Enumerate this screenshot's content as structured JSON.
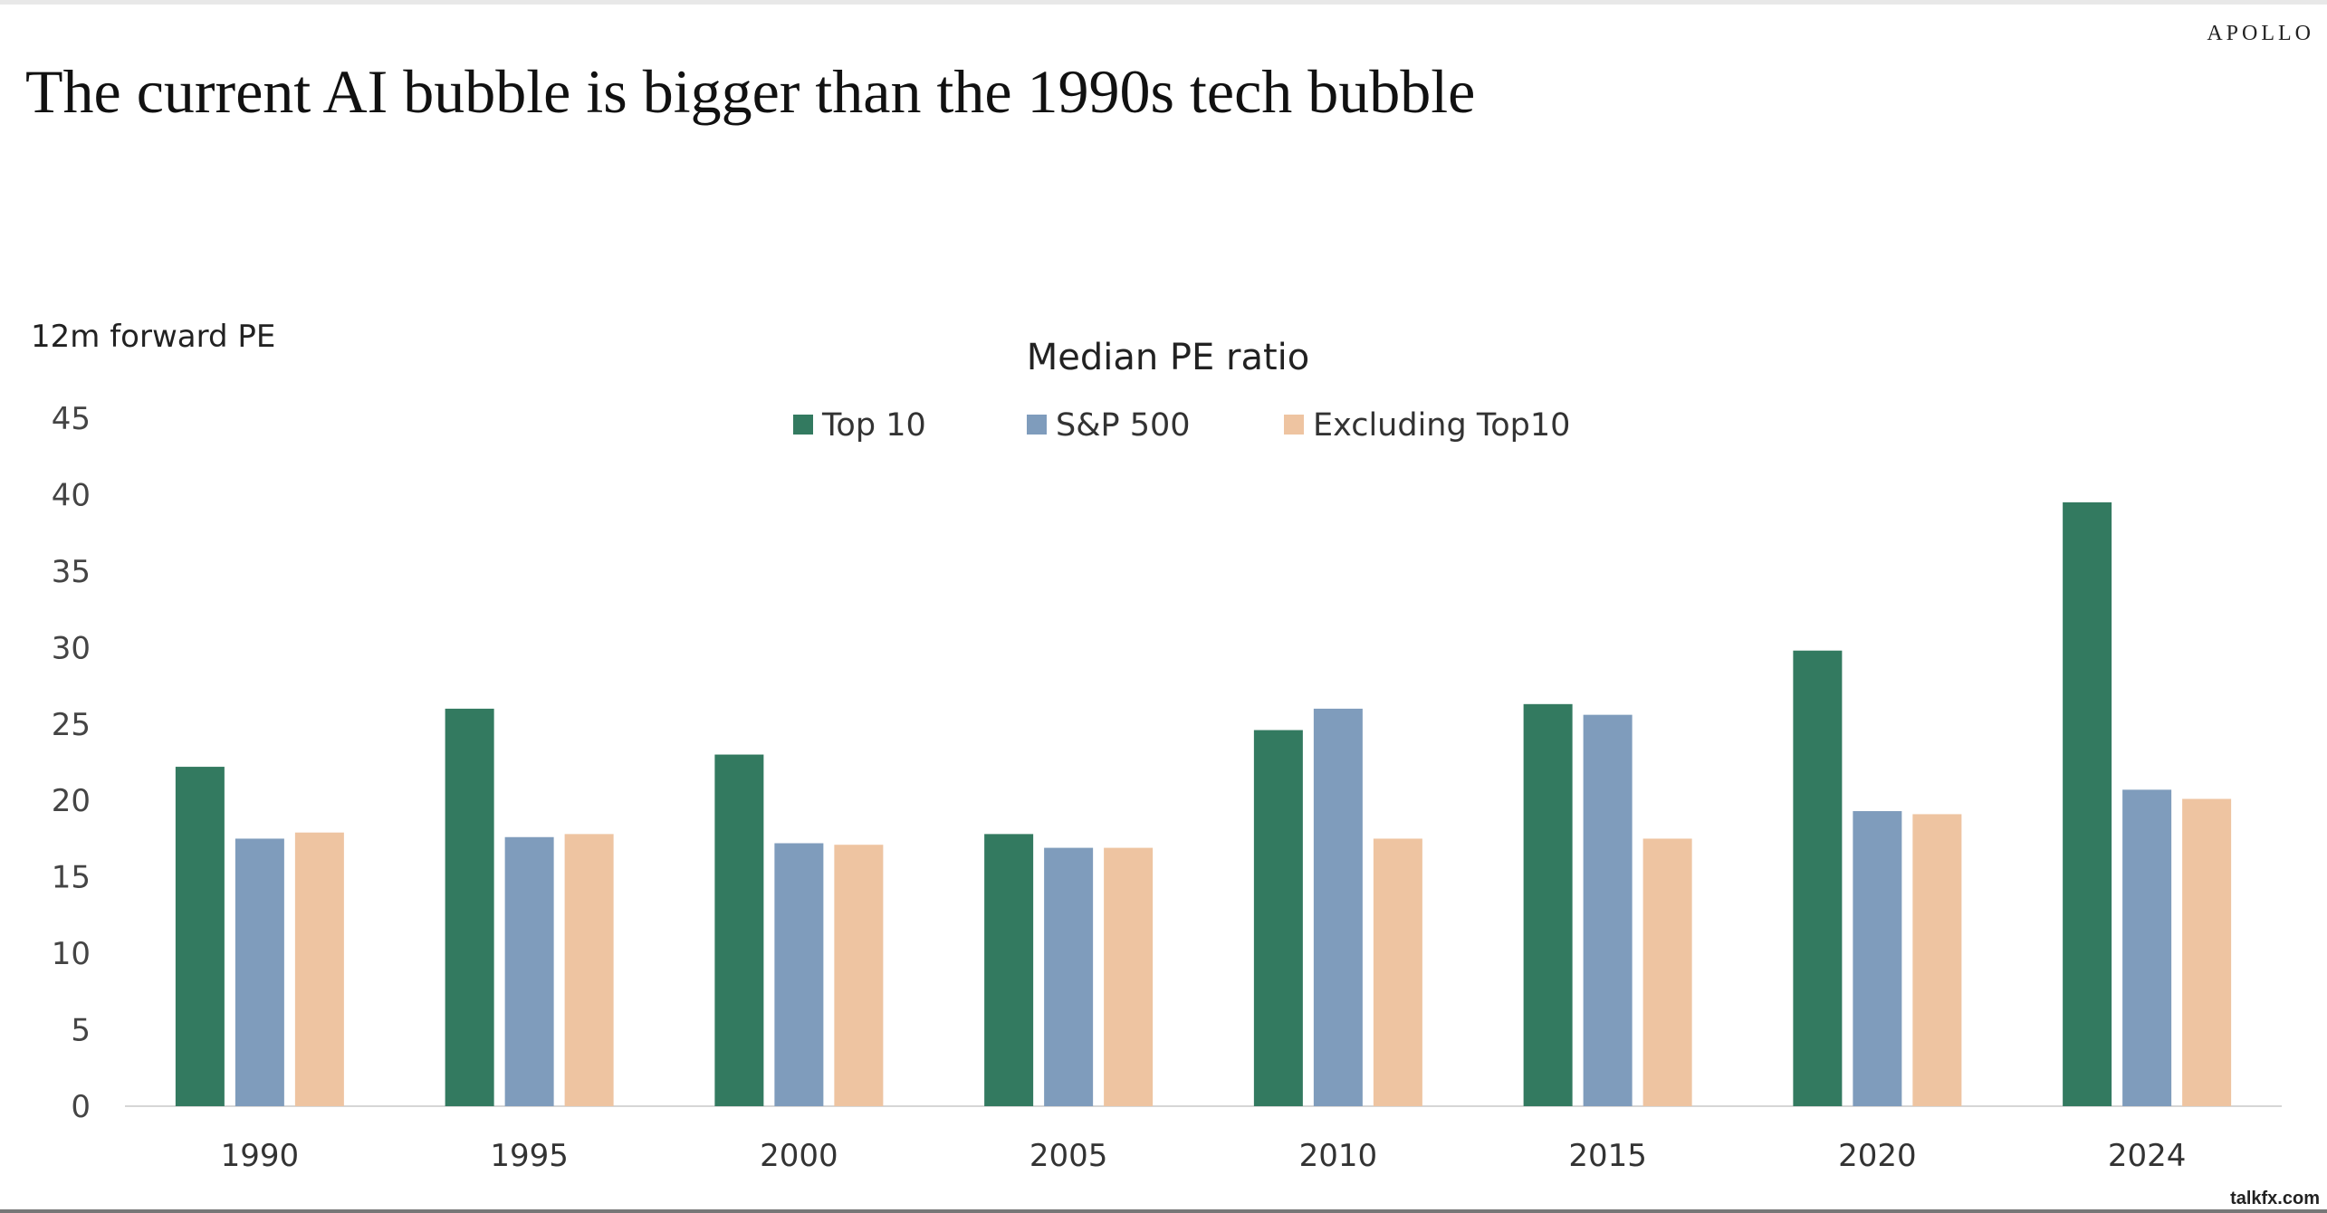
{
  "brand": "APOLLO",
  "headline": "The current AI bubble is bigger than the 1990s tech bubble",
  "watermark": "talkfx.com",
  "colors": {
    "top10": "#337a60",
    "sp500": "#7f9cbc",
    "excl": "#eec4a1",
    "axis": "#d6d6d6",
    "text": "#333333"
  },
  "chart_data": {
    "type": "bar",
    "title": "Median PE ratio",
    "ylabel": "12m forward PE",
    "xlabel": "",
    "categories": [
      "1990",
      "1995",
      "2000",
      "2005",
      "2010",
      "2015",
      "2020",
      "2024"
    ],
    "series": [
      {
        "name": "Top 10",
        "values": [
          22.2,
          26.0,
          23.0,
          17.8,
          24.6,
          26.3,
          29.8,
          39.5
        ]
      },
      {
        "name": "S&P 500",
        "values": [
          17.5,
          17.6,
          17.2,
          16.9,
          26.0,
          25.6,
          19.3,
          20.7
        ]
      },
      {
        "name": "Excluding Top10",
        "values": [
          17.9,
          17.8,
          17.1,
          16.9,
          17.5,
          17.5,
          19.1,
          20.1
        ]
      }
    ],
    "ylim": [
      0,
      45
    ],
    "yticks": [
      0,
      5,
      10,
      15,
      20,
      25,
      30,
      35,
      40,
      45
    ],
    "grid": false,
    "legend": "top-center"
  }
}
